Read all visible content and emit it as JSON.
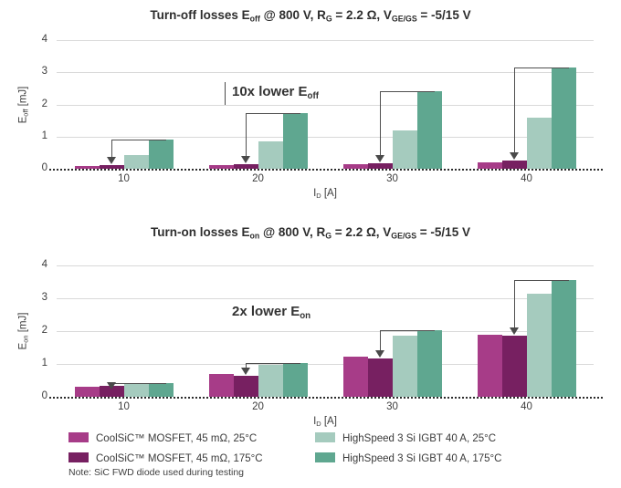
{
  "figure": {
    "note": "Note: SiC FWD diode used during testing"
  },
  "legend": {
    "items": [
      {
        "label": "CoolSiC™ MOSFET, 45 mΩ, 25°C",
        "color": "#a73c88"
      },
      {
        "label": "CoolSiC™ MOSFET, 45 mΩ, 175°C",
        "color": "#772061"
      },
      {
        "label": "HighSpeed 3 Si IGBT 40 A, 25°C",
        "color": "#a5cbbe"
      },
      {
        "label": "HighSpeed 3 Si IGBT 40 A, 175°C",
        "color": "#5fa790"
      }
    ]
  },
  "chart_data": [
    {
      "type": "bar",
      "title_parts": [
        {
          "text": "Turn-off losses E"
        },
        {
          "sub": "off"
        },
        {
          "text": " @ 800 V, R"
        },
        {
          "sub": "G"
        },
        {
          "text": " = 2.2 Ω, V"
        },
        {
          "sub": "GE/GS"
        },
        {
          "text": " = -5/15 V"
        }
      ],
      "ylabel_parts": [
        {
          "text": "E"
        },
        {
          "sub": "off"
        },
        {
          "text": " [mJ]"
        }
      ],
      "xlabel_parts": [
        {
          "text": "I"
        },
        {
          "sub": "D"
        },
        {
          "text": " [A]"
        }
      ],
      "categories": [
        "10",
        "20",
        "30",
        "40"
      ],
      "ylim": [
        0,
        4
      ],
      "yticks": [
        0,
        1,
        2,
        3,
        4
      ],
      "grid": "horizontal",
      "legend_position": "below-figure",
      "series": [
        {
          "name": "CoolSiC™ MOSFET, 45 mΩ, 25°C",
          "color": "#a73c88",
          "values": [
            0.08,
            0.1,
            0.14,
            0.2
          ]
        },
        {
          "name": "CoolSiC™ MOSFET, 45 mΩ, 175°C",
          "color": "#772061",
          "values": [
            0.1,
            0.13,
            0.17,
            0.25
          ]
        },
        {
          "name": "HighSpeed 3 Si IGBT 40 A, 25°C",
          "color": "#a5cbbe",
          "values": [
            0.43,
            0.85,
            1.2,
            1.6
          ]
        },
        {
          "name": "HighSpeed 3 Si IGBT 40 A, 175°C",
          "color": "#5fa790",
          "values": [
            0.9,
            1.72,
            2.42,
            3.15
          ]
        }
      ],
      "annotation_parts": [
        {
          "text": "10x lower E"
        },
        {
          "sub": "off"
        }
      ],
      "arrows": {
        "from_series": 3,
        "to_series": 1,
        "per_category": true
      }
    },
    {
      "type": "bar",
      "title_parts": [
        {
          "text": "Turn-on losses E"
        },
        {
          "sub": "on"
        },
        {
          "text": " @ 800 V, R"
        },
        {
          "sub": "G"
        },
        {
          "text": " = 2.2 Ω, V"
        },
        {
          "sub": "GE/GS"
        },
        {
          "text": " = -5/15 V"
        }
      ],
      "ylabel_parts": [
        {
          "text": "E"
        },
        {
          "sub": "on"
        },
        {
          "text": " [mJ]"
        }
      ],
      "xlabel_parts": [
        {
          "text": "I"
        },
        {
          "sub": "D"
        },
        {
          "text": " [A]"
        }
      ],
      "categories": [
        "10",
        "20",
        "30",
        "40"
      ],
      "ylim": [
        0,
        4
      ],
      "yticks": [
        0,
        1,
        2,
        3,
        4
      ],
      "grid": "horizontal",
      "legend_position": "below-figure",
      "series": [
        {
          "name": "CoolSiC™ MOSFET, 45 mΩ, 25°C",
          "color": "#a73c88",
          "values": [
            0.3,
            0.7,
            1.22,
            1.9
          ]
        },
        {
          "name": "CoolSiC™ MOSFET, 45 mΩ, 175°C",
          "color": "#772061",
          "values": [
            0.33,
            0.65,
            1.17,
            1.85
          ]
        },
        {
          "name": "HighSpeed 3 Si IGBT 40 A, 25°C",
          "color": "#a5cbbe",
          "values": [
            0.4,
            0.97,
            1.87,
            3.15
          ]
        },
        {
          "name": "HighSpeed 3 Si IGBT 40 A, 175°C",
          "color": "#5fa790",
          "values": [
            0.43,
            1.02,
            2.02,
            3.55
          ]
        }
      ],
      "annotation_parts": [
        {
          "text": "2x lower E"
        },
        {
          "sub": "on"
        }
      ],
      "arrows": {
        "from_series": 3,
        "to_series": 1,
        "per_category": true
      }
    }
  ]
}
